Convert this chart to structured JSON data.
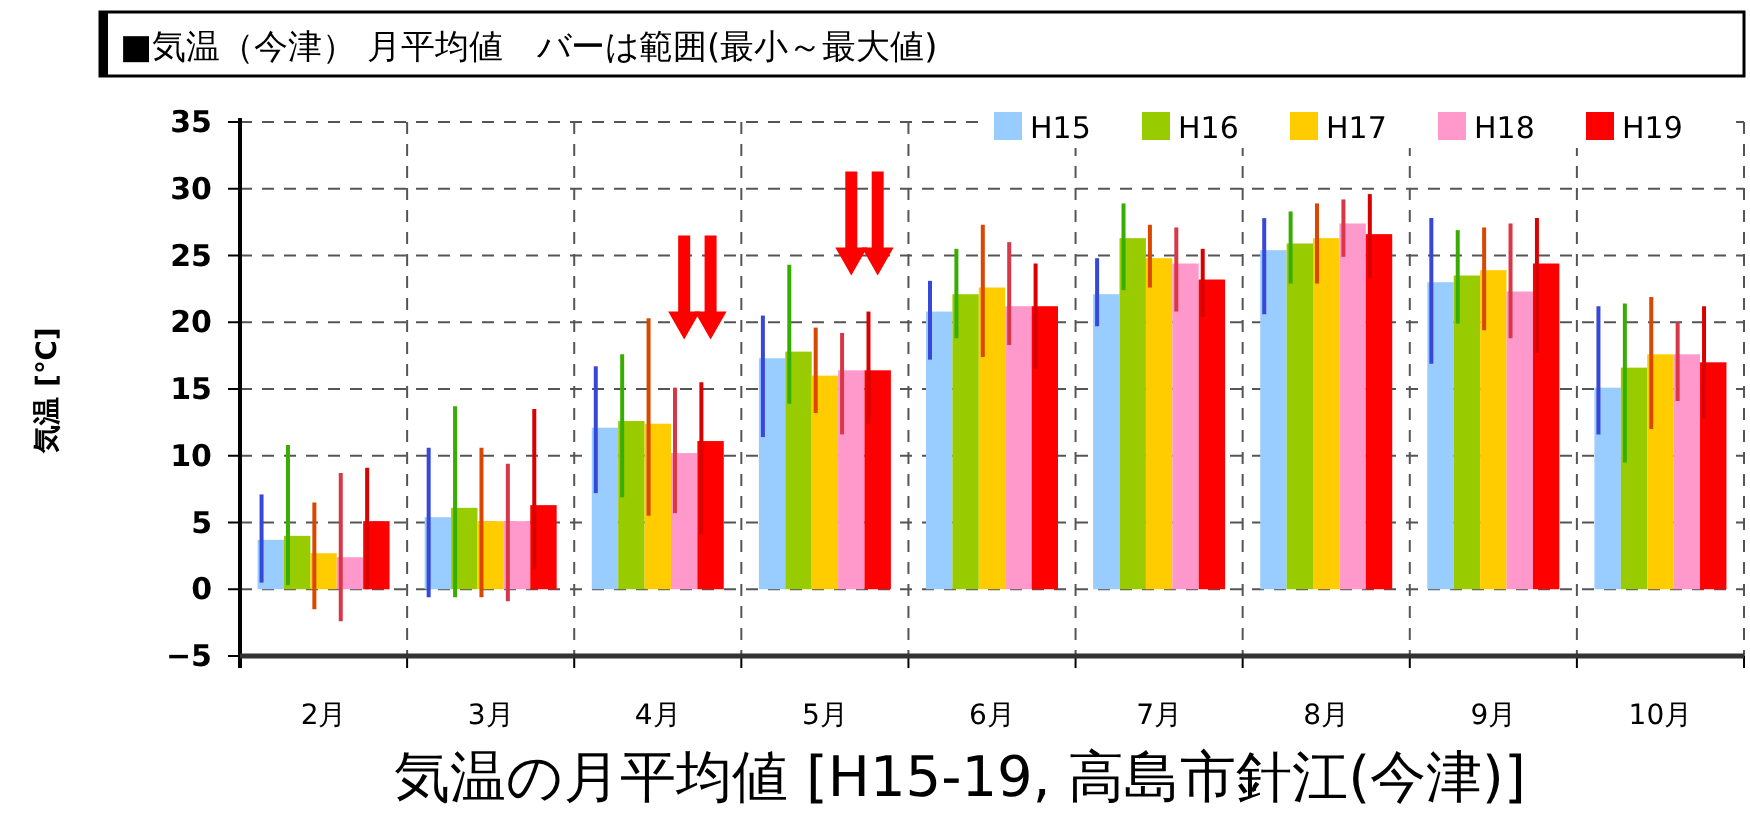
{
  "chart_data": {
    "type": "bar",
    "title": "気温の月平均値 [H15-19, 高島市針江(今津)]",
    "subtitle": "■気温（今津） 月平均値　バーは範囲(最小～最大値)",
    "ylabel": "気温 [℃]",
    "categories": [
      "2月",
      "3月",
      "4月",
      "5月",
      "6月",
      "7月",
      "8月",
      "9月",
      "10月"
    ],
    "series": [
      {
        "name": "H15",
        "color": "#99ccff",
        "values": [
          3.7,
          5.4,
          12.1,
          17.3,
          20.8,
          22.1,
          25.4,
          23.0,
          15.1
        ],
        "errors": [
          [
            0.5,
            7.1
          ],
          [
            -0.6,
            10.6
          ],
          [
            7.2,
            16.7
          ],
          [
            11.4,
            20.5
          ],
          [
            17.2,
            23.1
          ],
          [
            19.7,
            24.8
          ],
          [
            20.6,
            27.8
          ],
          [
            16.9,
            27.8
          ],
          [
            11.6,
            21.2
          ]
        ]
      },
      {
        "name": "H16",
        "color": "#99cc00",
        "values": [
          4.0,
          6.1,
          12.6,
          17.8,
          22.1,
          26.3,
          25.9,
          23.5,
          16.6
        ],
        "errors": [
          [
            0.3,
            10.8
          ],
          [
            -0.6,
            13.7
          ],
          [
            6.9,
            17.6
          ],
          [
            13.9,
            24.3
          ],
          [
            18.8,
            25.5
          ],
          [
            22.4,
            28.9
          ],
          [
            22.9,
            28.3
          ],
          [
            19.9,
            26.9
          ],
          [
            9.5,
            21.4
          ]
        ]
      },
      {
        "name": "H17",
        "color": "#ffcc00",
        "values": [
          2.7,
          5.1,
          12.4,
          16.0,
          22.6,
          24.8,
          26.3,
          23.9,
          17.6
        ],
        "errors": [
          [
            -1.5,
            6.5
          ],
          [
            -0.6,
            10.6
          ],
          [
            5.5,
            20.3
          ],
          [
            13.2,
            19.6
          ],
          [
            17.4,
            27.3
          ],
          [
            22.6,
            27.3
          ],
          [
            22.9,
            28.9
          ],
          [
            19.4,
            27.1
          ],
          [
            12.0,
            21.9
          ]
        ]
      },
      {
        "name": "H18",
        "color": "#ff99cc",
        "values": [
          2.4,
          5.1,
          10.2,
          16.4,
          21.2,
          24.4,
          27.4,
          22.3,
          17.6
        ],
        "errors": [
          [
            -2.4,
            8.7
          ],
          [
            -0.9,
            9.4
          ],
          [
            5.7,
            15.1
          ],
          [
            11.6,
            19.2
          ],
          [
            18.3,
            26.0
          ],
          [
            20.8,
            27.1
          ],
          [
            24.9,
            29.2
          ],
          [
            18.8,
            27.4
          ],
          [
            14.1,
            20.0
          ]
        ]
      },
      {
        "name": "H19",
        "color": "#ff0000",
        "values": [
          5.1,
          6.3,
          11.1,
          16.4,
          21.2,
          23.2,
          26.6,
          24.4,
          17.0
        ],
        "errors": [
          [
            0.0,
            9.1
          ],
          [
            1.5,
            13.5
          ],
          [
            4.1,
            15.5
          ],
          [
            12.4,
            20.8
          ],
          [
            16.5,
            24.4
          ],
          [
            20.4,
            25.5
          ],
          [
            23.3,
            29.6
          ],
          [
            17.7,
            27.8
          ],
          [
            12.8,
            21.2
          ]
        ]
      }
    ],
    "ylim": [
      -5,
      35
    ],
    "yticks": [
      -5,
      0,
      5,
      10,
      15,
      20,
      25,
      30,
      35
    ],
    "grid": true,
    "legend": "top right"
  }
}
